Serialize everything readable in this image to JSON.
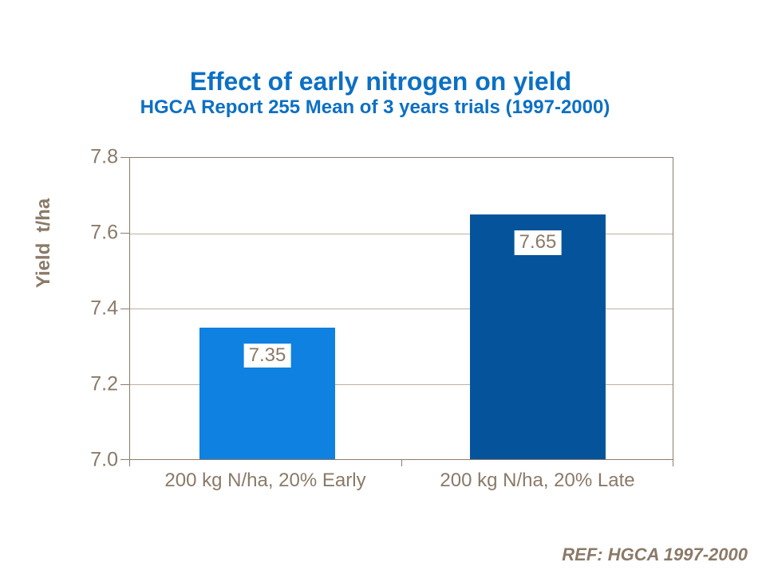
{
  "slide": {
    "title": "Effect of early nitrogen on yield",
    "subtitle": "HGCA Report 255 Mean of 3 years trials (1997-2000)",
    "ref_note": "REF: HGCA 1997-2000"
  },
  "colors": {
    "title_blue": "#0c70c4",
    "bar_early_blue": "#0e81e1",
    "bar_late_blue": "#05549b",
    "axis_brown": "#8d7c6b",
    "grid_tan": "#bcb0a2",
    "text_brown": "#8a7a68",
    "label_box_bg": "#ffffff"
  },
  "chart_data": {
    "type": "bar",
    "title": "Effect of early nitrogen on yield",
    "subtitle": "HGCA Report 255 Mean of 3 years trials (1997-2000)",
    "ylabel": "Yield  t/ha",
    "xlabel": "",
    "categories": [
      "200 kg N/ha, 20% Early",
      "200 kg N/ha, 20% Late"
    ],
    "values": [
      7.35,
      7.65
    ],
    "value_labels": [
      "7.35",
      "7.65"
    ],
    "bar_colors": [
      "#0e81e1",
      "#05549b"
    ],
    "ylim": [
      7.0,
      7.8
    ],
    "ytick_step": 0.2,
    "ytick_labels": [
      "7.8",
      "7.6",
      "7.4",
      "7.2",
      "7.0"
    ],
    "grid": "horizontal major gridlines",
    "legend": "none",
    "annotations": [
      "REF: HGCA 1997-2000"
    ]
  }
}
